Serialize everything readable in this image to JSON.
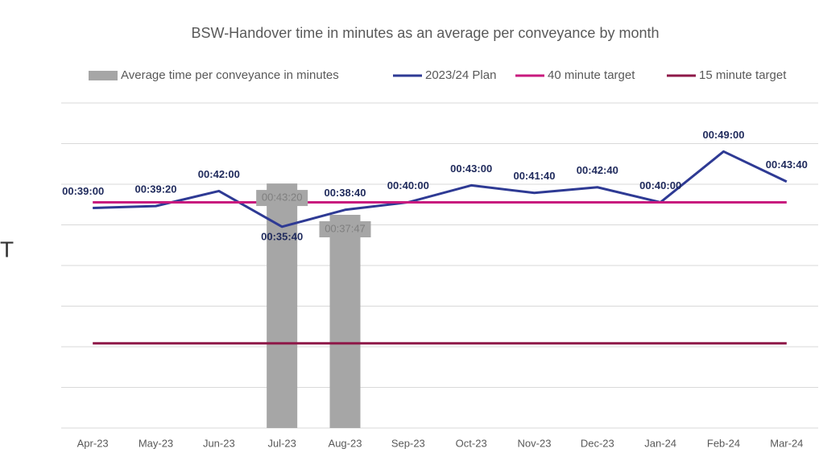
{
  "chart_data": {
    "type": "combo",
    "title": "BSW-Handover time in minutes as an average per conveyance by month",
    "side_text": "T",
    "categories": [
      "Apr-23",
      "May-23",
      "Jun-23",
      "Jul-23",
      "Aug-23",
      "Sep-23",
      "Oct-23",
      "Nov-23",
      "Dec-23",
      "Jan-24",
      "Feb-24",
      "Mar-24"
    ],
    "ylim": [
      0,
      57.6
    ],
    "yticks": [
      0,
      7.2,
      14.4,
      21.6,
      28.8,
      36,
      43.2,
      50.4,
      57.6
    ],
    "grid": true,
    "legend": "top",
    "series": [
      {
        "name": "Average time per conveyance in minutes",
        "type": "bar",
        "color": "#a6a6a6",
        "values": [
          null,
          null,
          null,
          43.333,
          37.783,
          null,
          null,
          null,
          null,
          null,
          null,
          null
        ],
        "value_labels": [
          null,
          null,
          null,
          "00:43:20",
          "00:37:47",
          null,
          null,
          null,
          null,
          null,
          null,
          null
        ]
      },
      {
        "name": "2023/24 Plan",
        "type": "line",
        "color": "#2e3a94",
        "values": [
          39,
          39.333,
          42,
          35.667,
          38.667,
          40,
          43,
          41.667,
          42.667,
          40,
          49,
          43.667
        ],
        "value_labels": [
          "00:39:00",
          "00:39:20",
          "00:42:00",
          "00:35:40",
          "00:38:40",
          "00:40:00",
          "00:43:00",
          "00:41:40",
          "00:42:40",
          "00:40:00",
          "00:49:00",
          "00:43:40"
        ]
      },
      {
        "name": "40 minute target",
        "type": "line",
        "color": "#c81a7e",
        "values": [
          40,
          40,
          40,
          40,
          40,
          40,
          40,
          40,
          40,
          40,
          40,
          40
        ]
      },
      {
        "name": "15 minute target",
        "type": "line",
        "color": "#8e1848",
        "values": [
          15,
          15,
          15,
          15,
          15,
          15,
          15,
          15,
          15,
          15,
          15,
          15
        ]
      }
    ]
  }
}
